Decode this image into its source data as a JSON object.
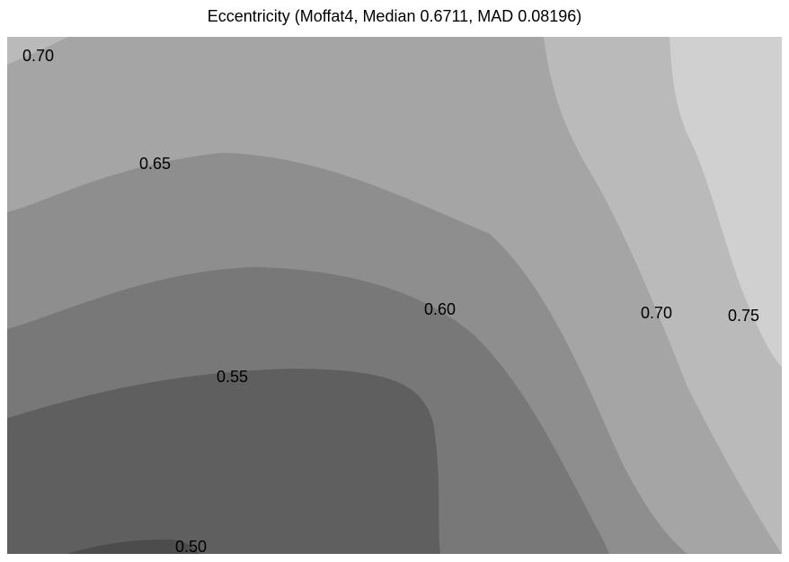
{
  "title": "Eccentricity (Moffat4, Median 0.6711, MAD 0.08196)",
  "chart_data": {
    "type": "contour",
    "title": "Eccentricity (Moffat4, Median 0.6711, MAD 0.08196)",
    "xlabel": "",
    "ylabel": "",
    "colormap": "grayscale",
    "legend": "none",
    "grid": false,
    "levels": [
      0.5,
      0.55,
      0.6,
      0.65,
      0.7,
      0.75
    ],
    "band_colors": [
      "#4c4c4c",
      "#5f5f5f",
      "#787878",
      "#8e8e8e",
      "#a5a5a5",
      "#bababa",
      "#d0d0d0"
    ],
    "contour_labels": [
      "0.70",
      "0.65",
      "0.60",
      "0.70",
      "0.75",
      "0.55",
      "0.50"
    ]
  }
}
